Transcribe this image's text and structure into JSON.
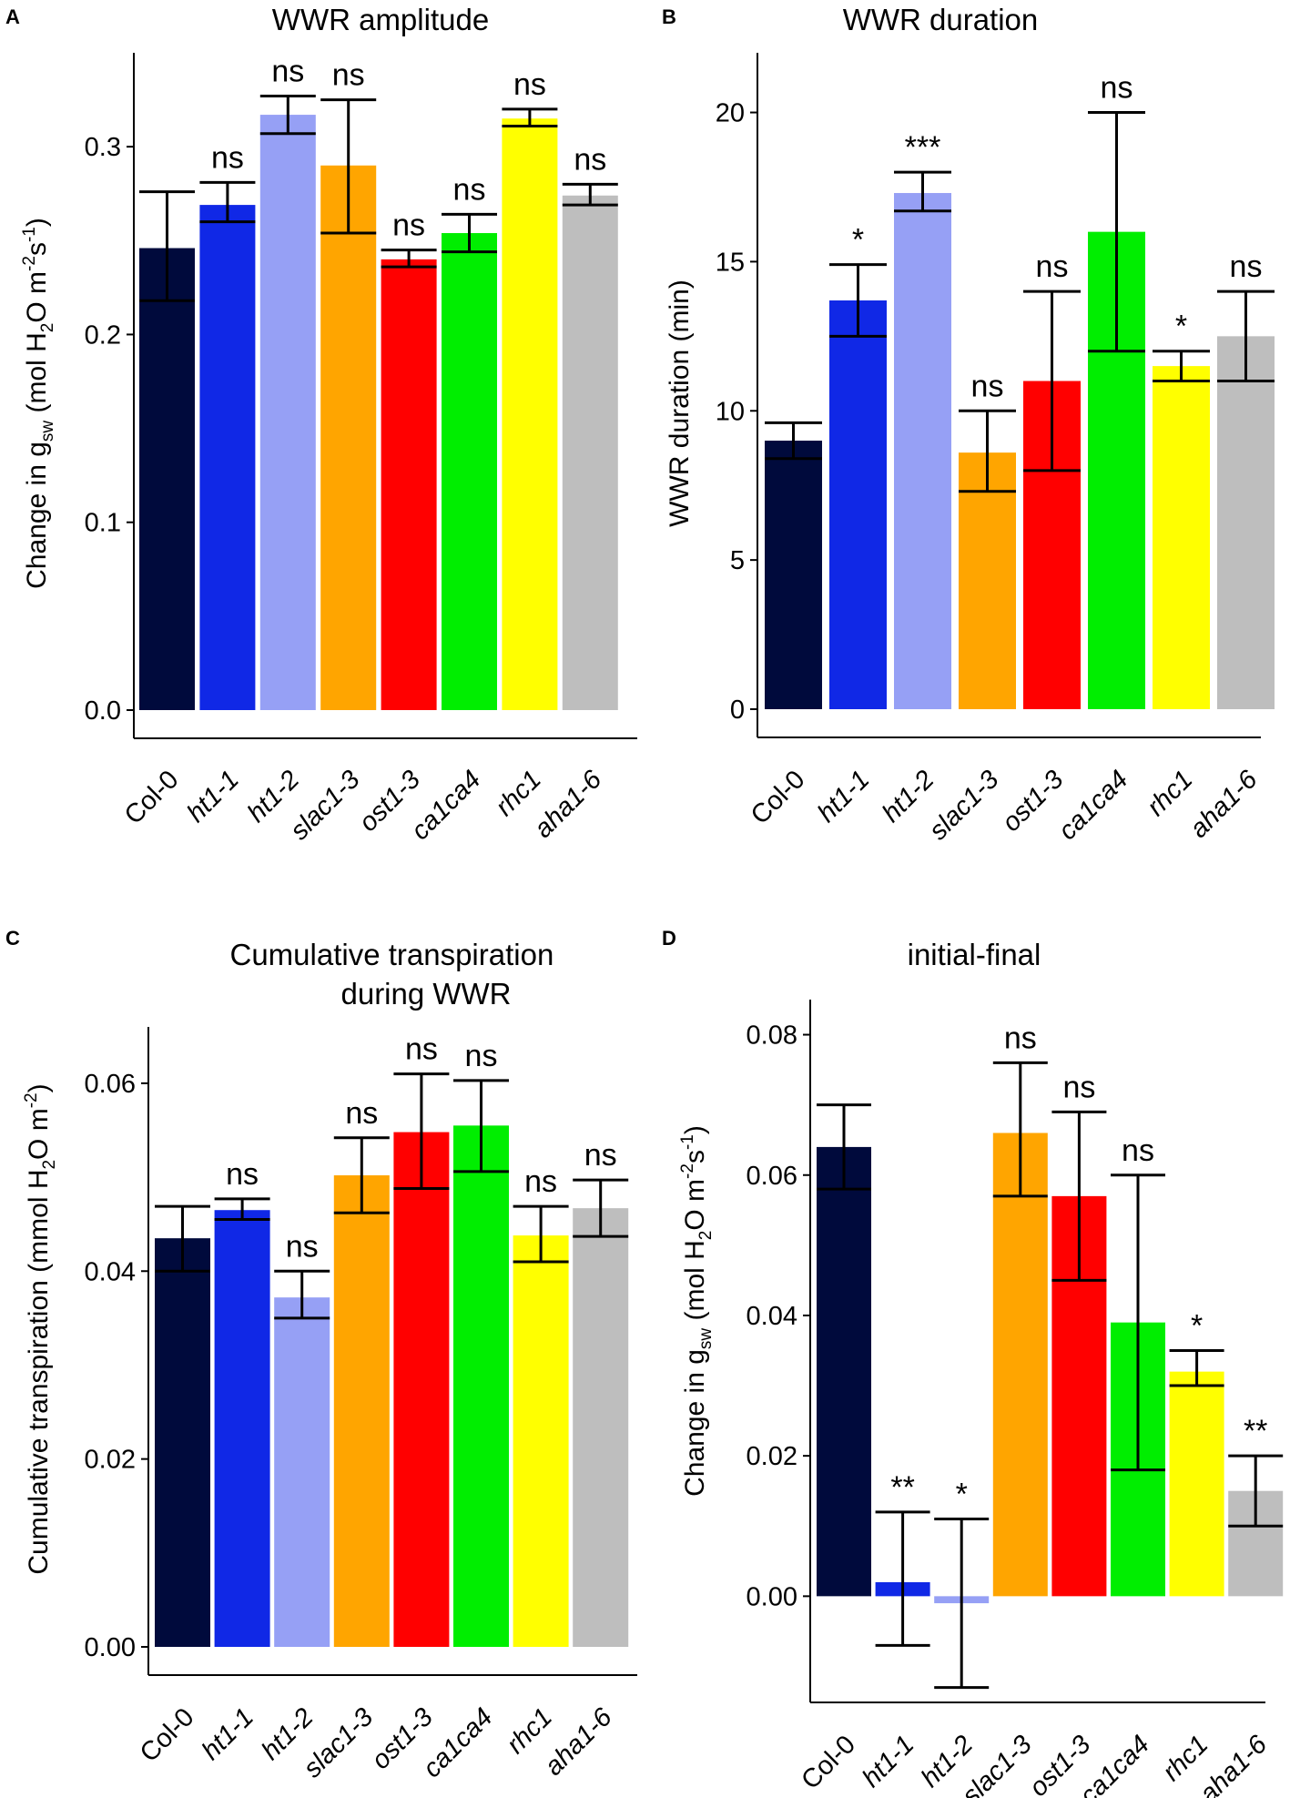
{
  "figure": {
    "categories": [
      {
        "name": "Col-0",
        "italic": false
      },
      {
        "name": "ht1-1",
        "italic": true
      },
      {
        "name": "ht1-2",
        "italic": true
      },
      {
        "name": "slac1-3",
        "italic": true
      },
      {
        "name": "ost1-3",
        "italic": true
      },
      {
        "name": "ca1ca4",
        "italic": true
      },
      {
        "name": "rhc1",
        "italic": true
      },
      {
        "name": "aha1-6",
        "italic": true
      }
    ],
    "colors": [
      "#000a3c",
      "#1028e6",
      "#96a0f5",
      "#ffa500",
      "#ff0000",
      "#00ee00",
      "#ffff00",
      "#bebebe"
    ]
  },
  "chart_data": [
    {
      "panel": "A",
      "type": "bar",
      "title_lines": [
        "WWR amplitude"
      ],
      "ylabel": "Change in gsw (mol H2O m-2s-1)",
      "ylim": [
        0,
        0.35
      ],
      "yticks": [
        0.0,
        0.1,
        0.2,
        0.3
      ],
      "ytick_labels": [
        "0.0",
        "0.1",
        "0.2",
        "0.3"
      ],
      "values": [
        0.246,
        0.269,
        0.317,
        0.29,
        0.24,
        0.254,
        0.315,
        0.274
      ],
      "err_low": [
        0.218,
        0.26,
        0.307,
        0.254,
        0.236,
        0.244,
        0.311,
        0.269
      ],
      "err_high": [
        0.276,
        0.281,
        0.327,
        0.325,
        0.245,
        0.264,
        0.32,
        0.28
      ],
      "significance": [
        "",
        "ns",
        "ns",
        "ns",
        "ns",
        "ns",
        "ns",
        "ns"
      ]
    },
    {
      "panel": "B",
      "type": "bar",
      "title_lines": [
        "WWR duration"
      ],
      "ylabel": "WWR duration (min)",
      "ylim": [
        0,
        22
      ],
      "yticks": [
        0,
        5,
        10,
        15,
        20
      ],
      "ytick_labels": [
        "0",
        "5",
        "10",
        "15",
        "20"
      ],
      "values": [
        9.0,
        13.7,
        17.3,
        8.6,
        11.0,
        16.0,
        11.5,
        12.5
      ],
      "err_low": [
        8.4,
        12.5,
        16.7,
        7.3,
        8.0,
        12.0,
        11.0,
        11.0
      ],
      "err_high": [
        9.6,
        14.9,
        18.0,
        10.0,
        14.0,
        20.0,
        12.0,
        14.0
      ],
      "significance": [
        "",
        "*",
        "***",
        "ns",
        "ns",
        "ns",
        "*",
        "ns"
      ]
    },
    {
      "panel": "C",
      "type": "bar",
      "title_lines": [
        "Cumulative transpiration",
        "during WWR"
      ],
      "ylabel": "Cumulative transpiration (mmol H2O m-2)",
      "ylim": [
        0,
        0.066
      ],
      "yticks": [
        0.0,
        0.02,
        0.04,
        0.06
      ],
      "ytick_labels": [
        "0.00",
        "0.02",
        "0.04",
        "0.06"
      ],
      "values": [
        0.0435,
        0.0465,
        0.0372,
        0.0502,
        0.0548,
        0.0555,
        0.0438,
        0.0467
      ],
      "err_low": [
        0.04,
        0.0455,
        0.035,
        0.0462,
        0.0488,
        0.0506,
        0.041,
        0.0437
      ],
      "err_high": [
        0.0469,
        0.0477,
        0.04,
        0.0542,
        0.061,
        0.0603,
        0.0469,
        0.0497
      ],
      "significance": [
        "",
        "ns",
        "ns",
        "ns",
        "ns",
        "ns",
        "ns",
        "ns"
      ]
    },
    {
      "panel": "D",
      "type": "bar",
      "title_lines": [
        "initial-final"
      ],
      "ylabel": "Change in gsw (mol H2O m-2s-1)",
      "ylim": [
        -0.015,
        0.085
      ],
      "yticks": [
        0.0,
        0.02,
        0.04,
        0.06,
        0.08
      ],
      "ytick_labels": [
        "0.00",
        "0.02",
        "0.04",
        "0.06",
        "0.08"
      ],
      "values": [
        0.064,
        0.002,
        -0.001,
        0.066,
        0.057,
        0.039,
        0.032,
        0.015
      ],
      "err_low": [
        0.058,
        -0.007,
        -0.013,
        0.057,
        0.045,
        0.018,
        0.03,
        0.01
      ],
      "err_high": [
        0.07,
        0.012,
        0.011,
        0.076,
        0.069,
        0.06,
        0.035,
        0.02
      ],
      "significance": [
        "",
        "**",
        "*",
        "ns",
        "ns",
        "ns",
        "*",
        "**"
      ]
    }
  ]
}
